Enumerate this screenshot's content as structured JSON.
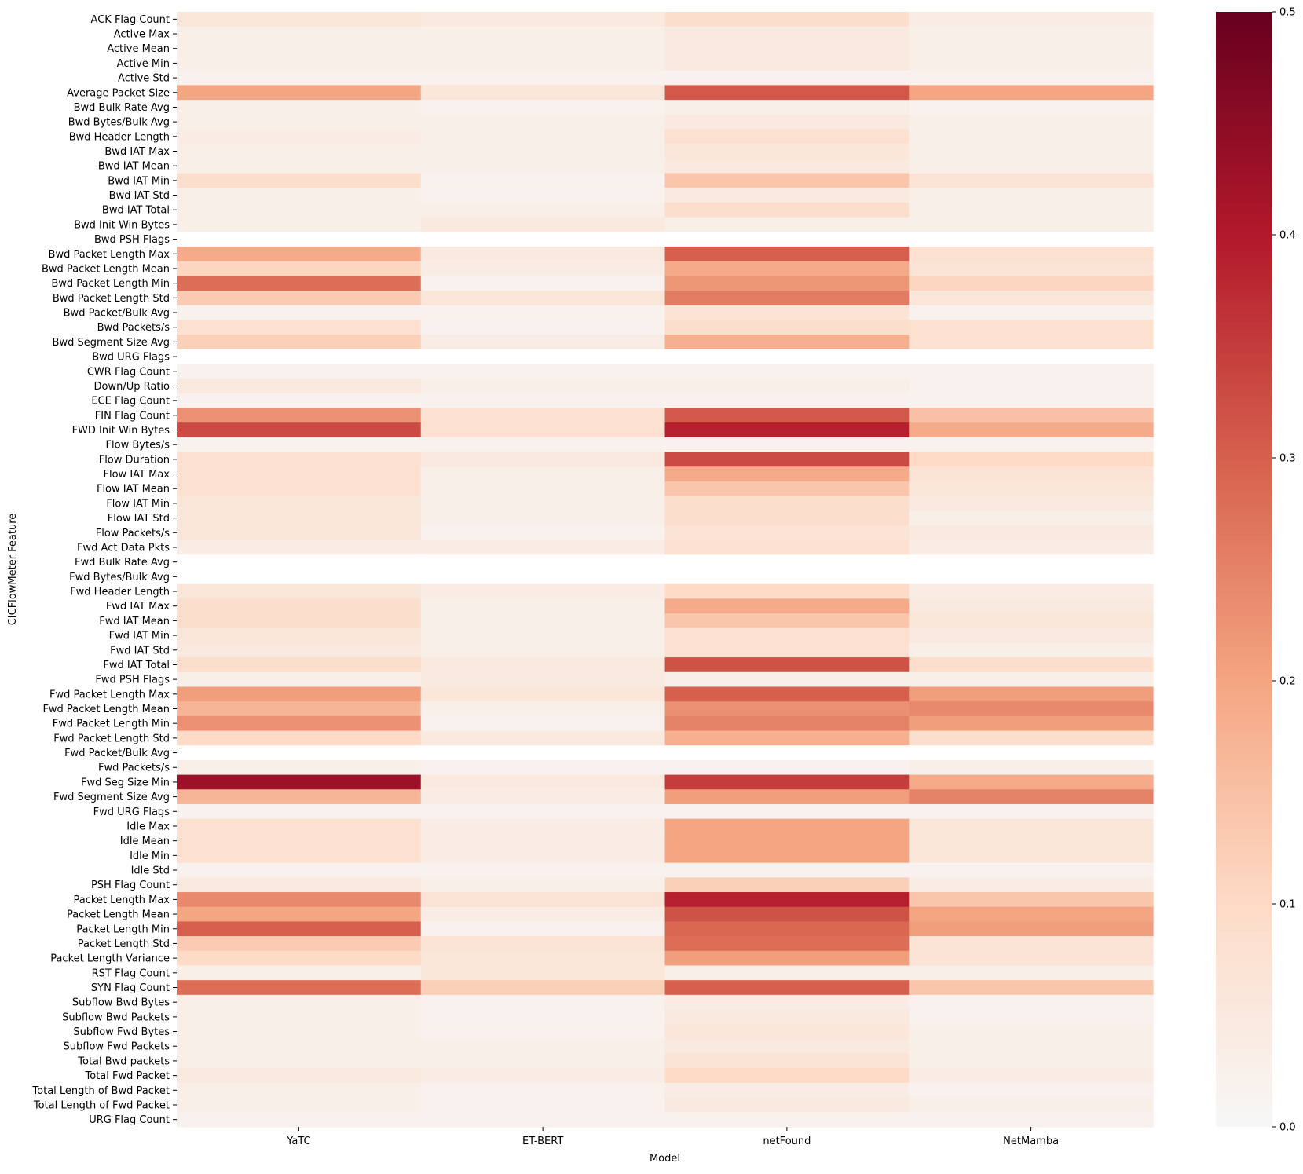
{
  "chart_data": {
    "type": "heatmap",
    "title": "",
    "xlabel": "Model",
    "ylabel": "CICFlowMeter Feature",
    "columns": [
      "YaTC",
      "ET-BERT",
      "netFound",
      "NetMamba"
    ],
    "rows": [
      "ACK Flag Count",
      "Active Max",
      "Active Mean",
      "Active Min",
      "Active Std",
      "Average Packet Size",
      "Bwd Bulk Rate Avg",
      "Bwd Bytes/Bulk Avg",
      "Bwd Header Length",
      "Bwd IAT Max",
      "Bwd IAT Mean",
      "Bwd IAT Min",
      "Bwd IAT Std",
      "Bwd IAT Total",
      "Bwd Init Win Bytes",
      "Bwd PSH Flags",
      "Bwd Packet Length Max",
      "Bwd Packet Length Mean",
      "Bwd Packet Length Min",
      "Bwd Packet Length Std",
      "Bwd Packet/Bulk Avg",
      "Bwd Packets/s",
      "Bwd Segment Size Avg",
      "Bwd URG Flags",
      "CWR Flag Count",
      "Down/Up Ratio",
      "ECE Flag Count",
      "FIN Flag Count",
      "FWD Init Win Bytes",
      "Flow Bytes/s",
      "Flow Duration",
      "Flow IAT Max",
      "Flow IAT Mean",
      "Flow IAT Min",
      "Flow IAT Std",
      "Flow Packets/s",
      "Fwd Act Data Pkts",
      "Fwd Bulk Rate Avg",
      "Fwd Bytes/Bulk Avg",
      "Fwd Header Length",
      "Fwd IAT Max",
      "Fwd IAT Mean",
      "Fwd IAT Min",
      "Fwd IAT Std",
      "Fwd IAT Total",
      "Fwd PSH Flags",
      "Fwd Packet Length Max",
      "Fwd Packet Length Mean",
      "Fwd Packet Length Min",
      "Fwd Packet Length Std",
      "Fwd Packet/Bulk Avg",
      "Fwd Packets/s",
      "Fwd Seg Size Min",
      "Fwd Segment Size Avg",
      "Fwd URG Flags",
      "Idle Max",
      "Idle Mean",
      "Idle Min",
      "Idle Std",
      "PSH Flag Count",
      "Packet Length Max",
      "Packet Length Mean",
      "Packet Length Min",
      "Packet Length Std",
      "Packet Length Variance",
      "RST Flag Count",
      "SYN Flag Count",
      "Subflow Bwd Bytes",
      "Subflow Bwd Packets",
      "Subflow Fwd Bytes",
      "Subflow Fwd Packets",
      "Total Bwd packets",
      "Total Fwd Packet",
      "Total Length of Bwd Packet",
      "Total Length of Fwd Packet",
      "URG Flag Count"
    ],
    "values": [
      [
        0.06,
        0.05,
        0.09,
        0.04
      ],
      [
        0.03,
        0.03,
        0.05,
        0.03
      ],
      [
        0.03,
        0.03,
        0.05,
        0.03
      ],
      [
        0.03,
        0.03,
        0.05,
        0.03
      ],
      [
        0.02,
        0.02,
        0.02,
        0.02
      ],
      [
        0.2,
        0.06,
        0.31,
        0.2
      ],
      [
        0.03,
        0.02,
        0.03,
        0.02
      ],
      [
        0.03,
        0.03,
        0.05,
        0.03
      ],
      [
        0.04,
        0.03,
        0.08,
        0.03
      ],
      [
        0.03,
        0.03,
        0.06,
        0.03
      ],
      [
        0.03,
        0.03,
        0.05,
        0.03
      ],
      [
        0.09,
        0.02,
        0.14,
        0.07
      ],
      [
        0.03,
        0.02,
        0.05,
        0.03
      ],
      [
        0.03,
        0.03,
        0.09,
        0.03
      ],
      [
        0.03,
        0.05,
        0.03,
        0.03
      ],
      [
        0.0,
        0.0,
        0.0,
        0.0
      ],
      [
        0.19,
        0.05,
        0.3,
        0.08
      ],
      [
        0.11,
        0.04,
        0.19,
        0.07
      ],
      [
        0.28,
        0.02,
        0.22,
        0.11
      ],
      [
        0.13,
        0.06,
        0.26,
        0.06
      ],
      [
        0.02,
        0.02,
        0.07,
        0.02
      ],
      [
        0.08,
        0.02,
        0.09,
        0.08
      ],
      [
        0.12,
        0.04,
        0.18,
        0.08
      ],
      [
        0.0,
        0.0,
        0.0,
        0.0
      ],
      [
        0.02,
        0.02,
        0.02,
        0.02
      ],
      [
        0.05,
        0.03,
        0.03,
        0.02
      ],
      [
        0.02,
        0.02,
        0.02,
        0.02
      ],
      [
        0.23,
        0.08,
        0.31,
        0.15
      ],
      [
        0.33,
        0.08,
        0.39,
        0.19
      ],
      [
        0.02,
        0.02,
        0.02,
        0.02
      ],
      [
        0.08,
        0.05,
        0.33,
        0.1
      ],
      [
        0.08,
        0.03,
        0.19,
        0.07
      ],
      [
        0.08,
        0.03,
        0.14,
        0.06
      ],
      [
        0.06,
        0.03,
        0.09,
        0.05
      ],
      [
        0.06,
        0.03,
        0.09,
        0.03
      ],
      [
        0.06,
        0.02,
        0.07,
        0.05
      ],
      [
        0.04,
        0.04,
        0.08,
        0.04
      ],
      [
        0.0,
        0.0,
        0.0,
        0.0
      ],
      [
        0.0,
        0.0,
        0.0,
        0.0
      ],
      [
        0.06,
        0.04,
        0.1,
        0.04
      ],
      [
        0.09,
        0.03,
        0.19,
        0.05
      ],
      [
        0.09,
        0.03,
        0.14,
        0.06
      ],
      [
        0.06,
        0.03,
        0.08,
        0.05
      ],
      [
        0.05,
        0.03,
        0.08,
        0.03
      ],
      [
        0.09,
        0.05,
        0.32,
        0.09
      ],
      [
        0.03,
        0.05,
        0.03,
        0.03
      ],
      [
        0.21,
        0.06,
        0.3,
        0.21
      ],
      [
        0.17,
        0.03,
        0.23,
        0.24
      ],
      [
        0.23,
        0.02,
        0.25,
        0.21
      ],
      [
        0.1,
        0.05,
        0.18,
        0.09
      ],
      [
        0.0,
        0.0,
        0.0,
        0.0
      ],
      [
        0.03,
        0.02,
        0.02,
        0.03
      ],
      [
        0.43,
        0.05,
        0.35,
        0.19
      ],
      [
        0.17,
        0.04,
        0.21,
        0.25
      ],
      [
        0.02,
        0.02,
        0.02,
        0.02
      ],
      [
        0.08,
        0.04,
        0.2,
        0.06
      ],
      [
        0.08,
        0.04,
        0.2,
        0.06
      ],
      [
        0.08,
        0.04,
        0.2,
        0.06
      ],
      [
        0.02,
        0.02,
        0.02,
        0.02
      ],
      [
        0.05,
        0.03,
        0.12,
        0.04
      ],
      [
        0.24,
        0.07,
        0.39,
        0.14
      ],
      [
        0.2,
        0.04,
        0.32,
        0.2
      ],
      [
        0.3,
        0.02,
        0.29,
        0.21
      ],
      [
        0.13,
        0.07,
        0.28,
        0.07
      ],
      [
        0.1,
        0.06,
        0.21,
        0.07
      ],
      [
        0.03,
        0.06,
        0.03,
        0.03
      ],
      [
        0.28,
        0.12,
        0.3,
        0.14
      ],
      [
        0.03,
        0.02,
        0.04,
        0.02
      ],
      [
        0.03,
        0.02,
        0.05,
        0.02
      ],
      [
        0.03,
        0.02,
        0.06,
        0.03
      ],
      [
        0.03,
        0.03,
        0.05,
        0.03
      ],
      [
        0.03,
        0.03,
        0.07,
        0.03
      ],
      [
        0.05,
        0.04,
        0.1,
        0.04
      ],
      [
        0.03,
        0.02,
        0.04,
        0.02
      ],
      [
        0.03,
        0.02,
        0.05,
        0.03
      ],
      [
        0.02,
        0.02,
        0.02,
        0.02
      ]
    ],
    "colorbar": {
      "vmin": 0.0,
      "vmax": 0.5,
      "ticks": [
        0.0,
        0.1,
        0.2,
        0.3,
        0.4,
        0.5
      ],
      "tick_labels": [
        "0.0",
        "0.1",
        "0.2",
        "0.3",
        "0.4",
        "0.5"
      ],
      "colormap": "RdBu_r (positive half)",
      "color_stops": [
        "#f7f7f7",
        "#fddbc7",
        "#f4a582",
        "#d6604d",
        "#b2182b",
        "#67001f"
      ]
    },
    "legend": "colorbar at right"
  }
}
